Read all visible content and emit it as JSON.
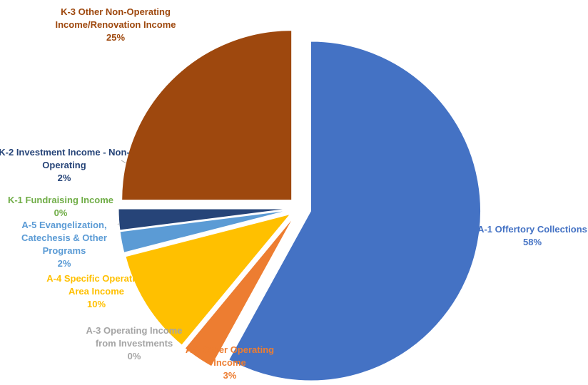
{
  "chart_data": {
    "type": "pie",
    "categories": [
      "A-1 Offertory Collections",
      "A-2 Other Operating Income",
      "A-3 Operating Income from Investments",
      "A-4 Specific Operating Area Income",
      "A-5 Evangelization, Catechesis & Other Programs",
      "K-1 Fundraising Income",
      "K-2 Investment Income - Non-Operating",
      "K-3 Other Non-Operating Income/Renovation Income"
    ],
    "values": [
      58,
      3,
      0,
      10,
      2,
      0,
      2,
      25
    ],
    "value_labels": [
      "58%",
      "3%",
      "0%",
      "10%",
      "2%",
      "0%",
      "2%",
      "25%"
    ],
    "colors": [
      "#4472c4",
      "#ed7d31",
      "#a5a5a5",
      "#ffc000",
      "#5b9bd5",
      "#70ad47",
      "#264478",
      "#9e480e"
    ]
  }
}
